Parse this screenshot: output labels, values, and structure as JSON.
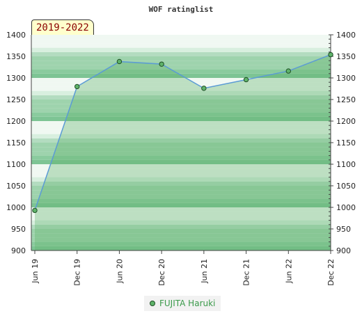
{
  "chart_data": {
    "type": "line",
    "title": "WOF ratinglist",
    "period_label": "2019-2022",
    "categories": [
      "Jun 19",
      "Dec 19",
      "Jun 20",
      "Dec 20",
      "Jun 21",
      "Dec 21",
      "Jun 22",
      "Dec 22"
    ],
    "series": [
      {
        "name": "FUJITA Haruki",
        "values": [
          993,
          1280,
          1338,
          1332,
          1276,
          1296,
          1316,
          1354
        ]
      }
    ],
    "ylim": [
      900,
      1400
    ],
    "yticks": [
      900,
      950,
      1000,
      1050,
      1100,
      1150,
      1200,
      1250,
      1300,
      1350,
      1400
    ],
    "legend_position": "bottom-center",
    "grid": true
  },
  "colors": {
    "line": "#5b9bd5",
    "marker": "#5fb36a",
    "band_dark": "#7dc494",
    "band_mid": "#9ed3ad",
    "band_light": "#d8efdf"
  }
}
